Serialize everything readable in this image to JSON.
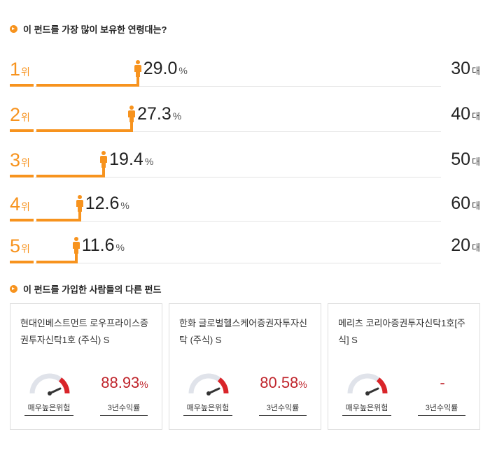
{
  "age_section": {
    "title": "이 펀드를 가장 많이 보유한 연령대는?",
    "rank_unit": "위",
    "pct_unit": "%",
    "age_unit": "대",
    "rows": [
      {
        "rank": "1",
        "pct": "29.0",
        "age": "30",
        "share": 29.0
      },
      {
        "rank": "2",
        "pct": "27.3",
        "age": "40",
        "share": 27.3
      },
      {
        "rank": "3",
        "pct": "19.4",
        "age": "50",
        "share": 19.4
      },
      {
        "rank": "4",
        "pct": "12.6",
        "age": "60",
        "share": 12.6
      },
      {
        "rank": "5",
        "pct": "11.6",
        "age": "20",
        "share": 11.6
      }
    ]
  },
  "other_funds_section": {
    "title": "이 펀드를 가입한 사람들의 다른 펀드",
    "risk_label": "매우높은위험",
    "return_label": "3년수익률",
    "funds": [
      {
        "name": "현대인베스트먼트 로우프라이스증권투자신탁1호 (주식) S",
        "return_value": "88.93",
        "return_unit": "%"
      },
      {
        "name": "한화 글로벌헬스케어증권자투자신탁 (주식) S",
        "return_value": "80.58",
        "return_unit": "%"
      },
      {
        "name": "메리츠 코리아증권투자신탁1호[주식] S",
        "return_value": "-",
        "return_unit": ""
      }
    ]
  },
  "colors": {
    "accent": "#f7931e",
    "return_red": "#c0262d",
    "gauge_red": "#d9252a",
    "gauge_grey": "#e0e3ea"
  }
}
